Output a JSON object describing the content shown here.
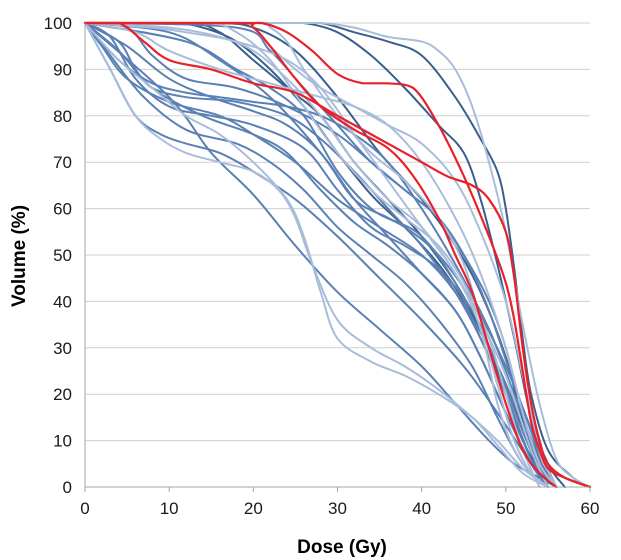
{
  "chart_data": {
    "type": "line",
    "xlabel": "Dose (Gy)",
    "ylabel": "Volume (%)",
    "xlim": [
      0,
      60
    ],
    "ylim": [
      0,
      100
    ],
    "x_ticks": [
      "0",
      "10",
      "20",
      "30",
      "40",
      "50",
      "60"
    ],
    "y_ticks": [
      "0",
      "10",
      "20",
      "30",
      "40",
      "50",
      "60",
      "70",
      "80",
      "90",
      "100"
    ],
    "grid": "horizontal",
    "legend": "none",
    "colors": {
      "dark_blue": "#3a5f8c",
      "mid_blue": "#5a80b4",
      "light_blue": "#a9bddb",
      "highlight": "#e8202a",
      "grid": "#d0d0d0",
      "axis": "#a6a6a6"
    },
    "series": [
      {
        "color": "highlight",
        "x": [
          0,
          19,
          21,
          24,
          27,
          30,
          33,
          36,
          39,
          42,
          45,
          48,
          50,
          51,
          52,
          53,
          54,
          55,
          57,
          60
        ],
        "y": [
          100,
          100,
          100,
          98,
          94,
          89,
          87,
          87,
          86,
          78,
          67,
          54,
          44,
          36,
          25,
          14,
          8,
          4,
          2,
          0
        ]
      },
      {
        "color": "highlight",
        "x": [
          0,
          4,
          7,
          10,
          15,
          20,
          25,
          30,
          35,
          40,
          43,
          46,
          48,
          50,
          51,
          52,
          53,
          54,
          55,
          57,
          60
        ],
        "y": [
          100,
          100,
          96,
          92,
          90,
          87,
          85,
          80,
          75,
          70,
          67,
          65,
          62,
          55,
          45,
          30,
          18,
          10,
          5,
          2,
          0
        ]
      },
      {
        "color": "highlight",
        "x": [
          0,
          18,
          20,
          22,
          25,
          28,
          32,
          36,
          39,
          42,
          44,
          46,
          48,
          50,
          52,
          54,
          56
        ],
        "y": [
          100,
          100,
          99,
          95,
          88,
          82,
          77,
          73,
          67,
          58,
          50,
          42,
          30,
          18,
          8,
          3,
          0
        ]
      },
      {
        "color": "dark_blue",
        "x": [
          0,
          20,
          24,
          28,
          32,
          36,
          40,
          44,
          47,
          49,
          50,
          51,
          52,
          53,
          55,
          58,
          60
        ],
        "y": [
          100,
          100,
          100,
          100,
          98,
          96,
          93,
          84,
          75,
          68,
          60,
          47,
          32,
          20,
          8,
          2,
          0
        ]
      },
      {
        "color": "dark_blue",
        "x": [
          0,
          22,
          26,
          30,
          34,
          38,
          42,
          45,
          47,
          49,
          51,
          53,
          55,
          57
        ],
        "y": [
          100,
          100,
          100,
          98,
          93,
          86,
          78,
          72,
          62,
          48,
          32,
          15,
          5,
          0
        ]
      },
      {
        "color": "dark_blue",
        "x": [
          0,
          15,
          20,
          25,
          30,
          35,
          40,
          44,
          47,
          50,
          52,
          54,
          56
        ],
        "y": [
          100,
          100,
          99,
          94,
          84,
          72,
          62,
          52,
          42,
          28,
          14,
          5,
          0
        ]
      },
      {
        "color": "dark_blue",
        "x": [
          0,
          10,
          14,
          18,
          22,
          26,
          30,
          34,
          38,
          42,
          45,
          48,
          50,
          52,
          54,
          56
        ],
        "y": [
          100,
          100,
          99,
          96,
          90,
          82,
          72,
          63,
          56,
          48,
          40,
          30,
          20,
          10,
          4,
          0
        ]
      },
      {
        "color": "dark_blue",
        "x": [
          0,
          12,
          16,
          20,
          24,
          28,
          32,
          36,
          40,
          44,
          47,
          50,
          53,
          56
        ],
        "y": [
          100,
          100,
          98,
          92,
          86,
          80,
          70,
          62,
          54,
          44,
          34,
          22,
          8,
          0
        ]
      },
      {
        "color": "mid_blue",
        "x": [
          0,
          5,
          8,
          12,
          18,
          24,
          30,
          34,
          38,
          42,
          45,
          48,
          50,
          52,
          54,
          56
        ],
        "y": [
          100,
          99,
          93,
          88,
          86,
          82,
          76,
          70,
          64,
          58,
          50,
          40,
          30,
          16,
          5,
          0
        ]
      },
      {
        "color": "mid_blue",
        "x": [
          0,
          4,
          6,
          8,
          12,
          18,
          24,
          28,
          32,
          36,
          40,
          44,
          47,
          50,
          53,
          56
        ],
        "y": [
          100,
          96,
          90,
          86,
          84,
          83,
          80,
          75,
          68,
          60,
          52,
          42,
          32,
          20,
          6,
          0
        ]
      },
      {
        "color": "mid_blue",
        "x": [
          0,
          3,
          6,
          10,
          15,
          20,
          26,
          30,
          34,
          38,
          42,
          46,
          49,
          52,
          54,
          56
        ],
        "y": [
          100,
          97,
          88,
          82,
          80,
          78,
          73,
          64,
          56,
          52,
          47,
          38,
          26,
          12,
          4,
          0
        ]
      },
      {
        "color": "mid_blue",
        "x": [
          0,
          4,
          8,
          14,
          20,
          24,
          28,
          32,
          36,
          40,
          44,
          47,
          50,
          53,
          55
        ],
        "y": [
          100,
          94,
          86,
          80,
          76,
          72,
          64,
          57,
          52,
          46,
          38,
          28,
          16,
          5,
          0
        ]
      },
      {
        "color": "mid_blue",
        "x": [
          0,
          2,
          5,
          10,
          16,
          20,
          25,
          30,
          35,
          40,
          44,
          48,
          51,
          54,
          56
        ],
        "y": [
          100,
          95,
          88,
          83,
          80,
          76,
          70,
          62,
          56,
          50,
          42,
          30,
          18,
          5,
          0
        ]
      },
      {
        "color": "mid_blue",
        "x": [
          0,
          3,
          7,
          12,
          18,
          22,
          26,
          30,
          34,
          38,
          42,
          46,
          49,
          52,
          55
        ],
        "y": [
          100,
          93,
          84,
          77,
          74,
          70,
          64,
          56,
          50,
          44,
          36,
          26,
          15,
          5,
          0
        ]
      },
      {
        "color": "mid_blue",
        "x": [
          0,
          4,
          8,
          12,
          16,
          20,
          24,
          28,
          32,
          36,
          40,
          44,
          48,
          51,
          54,
          56
        ],
        "y": [
          100,
          92,
          87,
          85,
          84,
          83,
          82,
          80,
          76,
          70,
          60,
          48,
          34,
          20,
          6,
          0
        ]
      },
      {
        "color": "mid_blue",
        "x": [
          0,
          5,
          10,
          15,
          20,
          24,
          28,
          32,
          36,
          40,
          44,
          47,
          50,
          53,
          55
        ],
        "y": [
          100,
          95,
          88,
          84,
          81,
          78,
          72,
          62,
          54,
          46,
          38,
          28,
          16,
          5,
          0
        ]
      },
      {
        "color": "mid_blue",
        "x": [
          0,
          3,
          6,
          9,
          12,
          16,
          20,
          25,
          30,
          35,
          40,
          45,
          49,
          53,
          55
        ],
        "y": [
          100,
          90,
          80,
          76,
          74,
          72,
          68,
          62,
          54,
          45,
          36,
          26,
          16,
          5,
          0
        ]
      },
      {
        "color": "mid_blue",
        "x": [
          0,
          10,
          15,
          20,
          25,
          30,
          35,
          40,
          44,
          48,
          51,
          54,
          56
        ],
        "y": [
          100,
          84,
          72,
          63,
          52,
          42,
          34,
          26,
          18,
          10,
          5,
          2,
          0
        ]
      },
      {
        "color": "mid_blue",
        "x": [
          0,
          12,
          18,
          22,
          26,
          30,
          34,
          38,
          42,
          46,
          50,
          53,
          55
        ],
        "y": [
          100,
          96,
          90,
          86,
          80,
          68,
          60,
          56,
          50,
          40,
          26,
          12,
          0
        ]
      },
      {
        "color": "mid_blue",
        "x": [
          0,
          18,
          22,
          26,
          30,
          34,
          38,
          42,
          45,
          48,
          51,
          54,
          56
        ],
        "y": [
          100,
          99,
          94,
          86,
          78,
          70,
          64,
          58,
          50,
          38,
          22,
          8,
          0
        ]
      },
      {
        "color": "mid_blue",
        "x": [
          0,
          10,
          16,
          22,
          28,
          32,
          36,
          40,
          44,
          47,
          50,
          53,
          55
        ],
        "y": [
          100,
          98,
          92,
          84,
          72,
          62,
          58,
          54,
          44,
          32,
          20,
          6,
          0
        ]
      },
      {
        "color": "light_blue",
        "x": [
          0,
          3,
          6,
          9,
          12,
          16,
          20,
          23,
          25,
          27,
          30,
          34,
          38,
          42,
          46,
          49,
          52,
          55
        ],
        "y": [
          100,
          90,
          80,
          75,
          72,
          70,
          68,
          64,
          58,
          48,
          36,
          30,
          26,
          21,
          15,
          10,
          4,
          0
        ]
      },
      {
        "color": "light_blue",
        "x": [
          0,
          4,
          8,
          12,
          16,
          20,
          24,
          26,
          28,
          30,
          34,
          38,
          42,
          46,
          49,
          52,
          55
        ],
        "y": [
          100,
          92,
          86,
          80,
          76,
          70,
          62,
          54,
          42,
          32,
          27,
          24,
          20,
          15,
          9,
          3,
          0
        ]
      },
      {
        "color": "light_blue",
        "x": [
          0,
          20,
          24,
          28,
          32,
          36,
          40,
          42,
          44,
          46,
          48,
          50,
          52,
          54,
          56,
          58,
          60
        ],
        "y": [
          100,
          100,
          100,
          100,
          99,
          97,
          96,
          94,
          90,
          82,
          70,
          55,
          35,
          18,
          6,
          2,
          0
        ]
      },
      {
        "color": "light_blue",
        "x": [
          0,
          18,
          20,
          22,
          25,
          28,
          32,
          36,
          40,
          44,
          47,
          50,
          52,
          54,
          56
        ],
        "y": [
          100,
          100,
          99,
          95,
          90,
          86,
          82,
          78,
          74,
          66,
          55,
          40,
          24,
          8,
          0
        ]
      },
      {
        "color": "light_blue",
        "x": [
          0,
          6,
          10,
          16,
          20,
          24,
          28,
          32,
          36,
          40,
          44,
          47,
          50,
          52,
          54,
          56
        ],
        "y": [
          100,
          98,
          94,
          90,
          88,
          86,
          84,
          82,
          78,
          70,
          58,
          46,
          30,
          16,
          5,
          0
        ]
      },
      {
        "color": "light_blue",
        "x": [
          0,
          10,
          16,
          20,
          24,
          28,
          32,
          36,
          40,
          44,
          47,
          50,
          53,
          55
        ],
        "y": [
          100,
          99,
          97,
          94,
          88,
          80,
          70,
          62,
          56,
          46,
          36,
          24,
          8,
          0
        ]
      },
      {
        "color": "light_blue",
        "x": [
          0,
          14,
          18,
          22,
          26,
          30,
          34,
          38,
          42,
          45,
          48,
          50,
          52,
          54
        ],
        "y": [
          100,
          100,
          98,
          92,
          82,
          72,
          64,
          58,
          52,
          44,
          32,
          20,
          8,
          0
        ]
      },
      {
        "color": "light_blue",
        "x": [
          0,
          20,
          22,
          24,
          26,
          30,
          34,
          38,
          42,
          45,
          47,
          49,
          51,
          53,
          55
        ],
        "y": [
          100,
          100,
          99,
          96,
          90,
          80,
          72,
          66,
          58,
          48,
          36,
          22,
          10,
          3,
          0
        ]
      },
      {
        "color": "light_blue",
        "x": [
          0,
          8,
          12,
          18,
          24,
          28,
          32,
          36,
          40,
          44,
          47,
          49,
          51,
          53,
          55
        ],
        "y": [
          100,
          99,
          98,
          96,
          92,
          86,
          76,
          66,
          56,
          46,
          34,
          18,
          8,
          3,
          0
        ]
      }
    ]
  }
}
